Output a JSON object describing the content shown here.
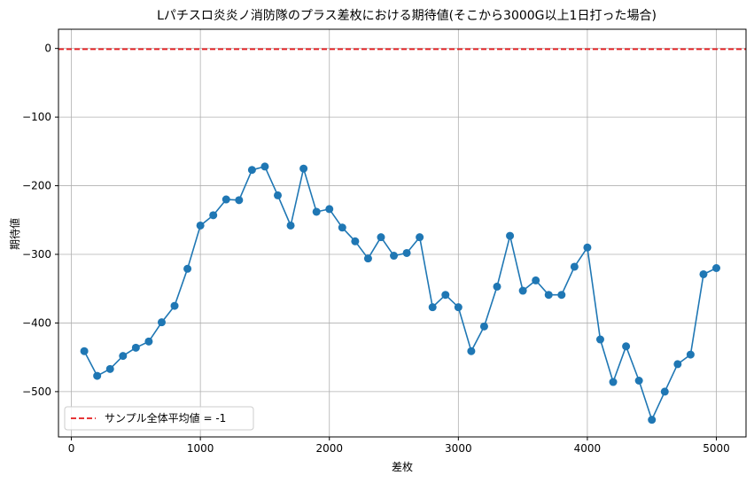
{
  "chart_data": {
    "type": "line",
    "title": "Lパチスロ炎炎ノ消防隊のプラス差枚における期待値(そこから3000G以上1日打った場合)",
    "xlabel": "差枚",
    "ylabel": "期待値",
    "xlim": [
      -100,
      5230
    ],
    "ylim": [
      -566,
      28
    ],
    "xticks": [
      0,
      1000,
      2000,
      3000,
      4000,
      5000
    ],
    "yticks": [
      0,
      -100,
      -200,
      -300,
      -400,
      -500
    ],
    "xtick_labels": [
      "0",
      "1000",
      "2000",
      "3000",
      "4000",
      "5000"
    ],
    "ytick_labels": [
      "0",
      "−100",
      "−200",
      "−300",
      "−400",
      "−500"
    ],
    "grid": true,
    "legend_position": "lower-left",
    "series": [
      {
        "color": "#1f77b4",
        "marker": "circle",
        "x": [
          100,
          200,
          300,
          400,
          500,
          600,
          700,
          800,
          900,
          1000,
          1100,
          1200,
          1300,
          1400,
          1500,
          1600,
          1700,
          1800,
          1900,
          2000,
          2100,
          2200,
          2300,
          2400,
          2500,
          2600,
          2700,
          2800,
          2900,
          3000,
          3100,
          3200,
          3300,
          3400,
          3500,
          3600,
          3700,
          3800,
          3900,
          4000,
          4100,
          4200,
          4300,
          4400,
          4500,
          4600,
          4700,
          4800,
          4900,
          5000
        ],
        "y": [
          -441,
          -477,
          -467,
          -448,
          -436,
          -427,
          -399,
          -375,
          -321,
          -258,
          -243,
          -220,
          -221,
          -177,
          -172,
          -214,
          -258,
          -175,
          -238,
          -234,
          -261,
          -281,
          -306,
          -275,
          -302,
          -298,
          -275,
          -377,
          -359,
          -377,
          -441,
          -405,
          -347,
          -273,
          -353,
          -338,
          -359,
          -359,
          -318,
          -290,
          -424,
          -486,
          -434,
          -484,
          -541,
          -500,
          -460,
          -446,
          -329,
          -320
        ]
      }
    ],
    "reference_lines": [
      {
        "y": -1,
        "color": "#e31a1c",
        "style": "dashed",
        "label": "サンプル全体平均値 = -1"
      }
    ]
  }
}
